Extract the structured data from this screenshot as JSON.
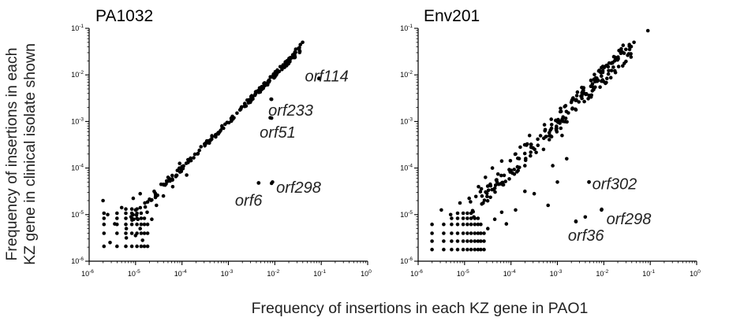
{
  "figure": {
    "ylabel_line1": "Frequency of insertions in each",
    "ylabel_line2": "KZ gene in clinical isolate shown",
    "xlabel": "Frequency of insertions in each KZ gene in PAO1"
  },
  "chart_data": [
    {
      "type": "scatter",
      "title": "PA1032",
      "x_scale": "log",
      "y_scale": "log",
      "xlim": [
        1e-06,
        1
      ],
      "ylim": [
        1e-06,
        0.1
      ],
      "x_ticks": [
        {
          "base": "10",
          "exp": "-6",
          "v": -6
        },
        {
          "base": "10",
          "exp": "-5",
          "v": -5
        },
        {
          "base": "10",
          "exp": "-4",
          "v": -4
        },
        {
          "base": "10",
          "exp": "-3",
          "v": -3
        },
        {
          "base": "10",
          "exp": "-2",
          "v": -2
        },
        {
          "base": "10",
          "exp": "-1",
          "v": -1
        },
        {
          "base": "10",
          "exp": "0",
          "v": 0
        }
      ],
      "y_ticks": [
        {
          "base": "10",
          "exp": "-6",
          "v": -6
        },
        {
          "base": "10",
          "exp": "-5",
          "v": -5
        },
        {
          "base": "10",
          "exp": "-4",
          "v": -4
        },
        {
          "base": "10",
          "exp": "-3",
          "v": -3
        },
        {
          "base": "10",
          "exp": "-2",
          "v": -2
        },
        {
          "base": "10",
          "exp": "-1",
          "v": -1
        }
      ],
      "annotations": [
        {
          "text": "orf114",
          "x": 0.09,
          "y": 0.0085
        },
        {
          "text": "orf233",
          "x": 0.0085,
          "y": 0.003
        },
        {
          "text": "orf51",
          "x": 0.0085,
          "y": 0.00118
        },
        {
          "text": "orf298",
          "x": 0.0085,
          "y": 4.7e-05
        },
        {
          "text": "orf6",
          "x": 0.0045,
          "y": 4.8e-05
        }
      ],
      "diagonal": {
        "n": 195,
        "x_from": -5.1,
        "x_to": -1.45,
        "y_offset": 0,
        "spread": 0.06
      },
      "low_points": [
        [
          -5.7,
          -4.7
        ],
        [
          -5.6,
          -5.0
        ],
        [
          -5.45,
          -5.2
        ],
        [
          -5.3,
          -4.85
        ],
        [
          -5.2,
          -5.3
        ],
        [
          -5.55,
          -5.6
        ],
        [
          -5.0,
          -4.9
        ],
        [
          -4.95,
          -5.1
        ],
        [
          -4.8,
          -4.75
        ],
        [
          -4.75,
          -4.95
        ],
        [
          -4.6,
          -4.5
        ],
        [
          -4.55,
          -4.8
        ],
        [
          -4.45,
          -4.35
        ],
        [
          -4.3,
          -4.2
        ],
        [
          -4.2,
          -4.4
        ],
        [
          -4.1,
          -4.05
        ],
        [
          -4.05,
          -3.9
        ],
        [
          -3.9,
          -4.15
        ],
        [
          -4.4,
          -4.6
        ],
        [
          -4.9,
          -4.55
        ],
        [
          -5.05,
          -4.65
        ]
      ],
      "grid_points": {
        "xs": [
          -5.68,
          -5.4,
          -5.21,
          -5.08,
          -4.97,
          -4.88,
          -4.81,
          -4.74
        ],
        "ys": [
          -5.68,
          -5.4,
          -5.21,
          -5.08,
          -4.97,
          -4.88
        ],
        "count_per_x": [
          5,
          5,
          6,
          6,
          6,
          5,
          4,
          3
        ]
      },
      "extra_points": [
        [
          -5.2,
          -5.5
        ],
        [
          -5.0,
          -5.45
        ],
        [
          -4.85,
          -5.55
        ],
        [
          -4.65,
          -5.1
        ],
        [
          -4.9,
          -5.3
        ]
      ],
      "outliers": [
        [
          -1.05,
          -2.08
        ],
        [
          -2.08,
          -2.52
        ],
        [
          -2.1,
          -2.92
        ],
        [
          -2.35,
          -4.32
        ],
        [
          -2.05,
          -4.3
        ],
        [
          -1.4,
          -1.3
        ],
        [
          -1.45,
          -1.35
        ],
        [
          -1.55,
          -1.45
        ]
      ]
    },
    {
      "type": "scatter",
      "title": "Env201",
      "x_scale": "log",
      "y_scale": "log",
      "xlim": [
        1e-06,
        1
      ],
      "ylim": [
        1e-06,
        0.1
      ],
      "x_ticks": [
        {
          "base": "10",
          "exp": "-6",
          "v": -6
        },
        {
          "base": "10",
          "exp": "-5",
          "v": -5
        },
        {
          "base": "10",
          "exp": "-4",
          "v": -4
        },
        {
          "base": "10",
          "exp": "-3",
          "v": -3
        },
        {
          "base": "10",
          "exp": "-2",
          "v": -2
        },
        {
          "base": "10",
          "exp": "-1",
          "v": -1
        },
        {
          "base": "10",
          "exp": "0",
          "v": 0
        }
      ],
      "y_ticks": [
        {
          "base": "10",
          "exp": "-6",
          "v": -6
        },
        {
          "base": "10",
          "exp": "-5",
          "v": -5
        },
        {
          "base": "10",
          "exp": "-4",
          "v": -4
        },
        {
          "base": "10",
          "exp": "-3",
          "v": -3
        },
        {
          "base": "10",
          "exp": "-2",
          "v": -2
        },
        {
          "base": "10",
          "exp": "-1",
          "v": -1
        }
      ],
      "annotations": [
        {
          "text": "orf302",
          "x": 0.0048,
          "y": 5e-05
        },
        {
          "text": "orf298",
          "x": 0.009,
          "y": 1.3e-05
        },
        {
          "text": "orf36",
          "x": 0.0025,
          "y": 7.2e-06
        }
      ],
      "diagonal": {
        "n": 215,
        "x_from": -4.9,
        "x_to": -1.4,
        "y_offset": 0,
        "spread": 0.22
      },
      "low_points": [
        [
          -5.5,
          -4.9
        ],
        [
          -5.3,
          -5.0
        ],
        [
          -5.1,
          -4.75
        ],
        [
          -4.9,
          -4.65
        ],
        [
          -4.7,
          -4.4
        ],
        [
          -4.55,
          -4.2
        ],
        [
          -4.4,
          -4.0
        ],
        [
          -4.2,
          -3.85
        ],
        [
          -4.3,
          -4.3
        ],
        [
          -4.0,
          -4.05
        ],
        [
          -3.9,
          -3.7
        ],
        [
          -3.8,
          -3.55
        ],
        [
          -3.7,
          -3.95
        ],
        [
          -3.6,
          -3.3
        ],
        [
          -4.6,
          -4.75
        ],
        [
          -4.8,
          -5.05
        ],
        [
          -3.5,
          -4.55
        ],
        [
          -3.2,
          -4.8
        ],
        [
          -3.3,
          -3.6
        ],
        [
          -3.1,
          -3.95
        ],
        [
          -2.9,
          -3.3
        ],
        [
          -2.8,
          -3.8
        ],
        [
          -3.0,
          -4.3
        ],
        [
          -3.7,
          -4.5
        ]
      ],
      "grid_points": {
        "xs": [
          -5.7,
          -5.45,
          -5.28,
          -5.15,
          -5.03,
          -4.94,
          -4.86,
          -4.78,
          -4.71,
          -4.65,
          -4.58
        ],
        "ys": [
          -5.75,
          -5.57,
          -5.4,
          -5.21,
          -5.08,
          -4.97
        ],
        "count_per_x": [
          4,
          4,
          5,
          6,
          6,
          6,
          6,
          5,
          5,
          4,
          3
        ]
      },
      "extra_points": [
        [
          -4.5,
          -5.3
        ],
        [
          -4.35,
          -5.1
        ],
        [
          -4.2,
          -4.95
        ],
        [
          -4.1,
          -5.2
        ],
        [
          -3.9,
          -4.9
        ],
        [
          -2.4,
          -5.05
        ]
      ],
      "outliers": [
        [
          -1.05,
          -1.05
        ],
        [
          -2.32,
          -4.3
        ],
        [
          -2.6,
          -5.15
        ],
        [
          -2.05,
          -4.9
        ],
        [
          -1.35,
          -1.3
        ],
        [
          -1.45,
          -1.35
        ]
      ]
    }
  ]
}
